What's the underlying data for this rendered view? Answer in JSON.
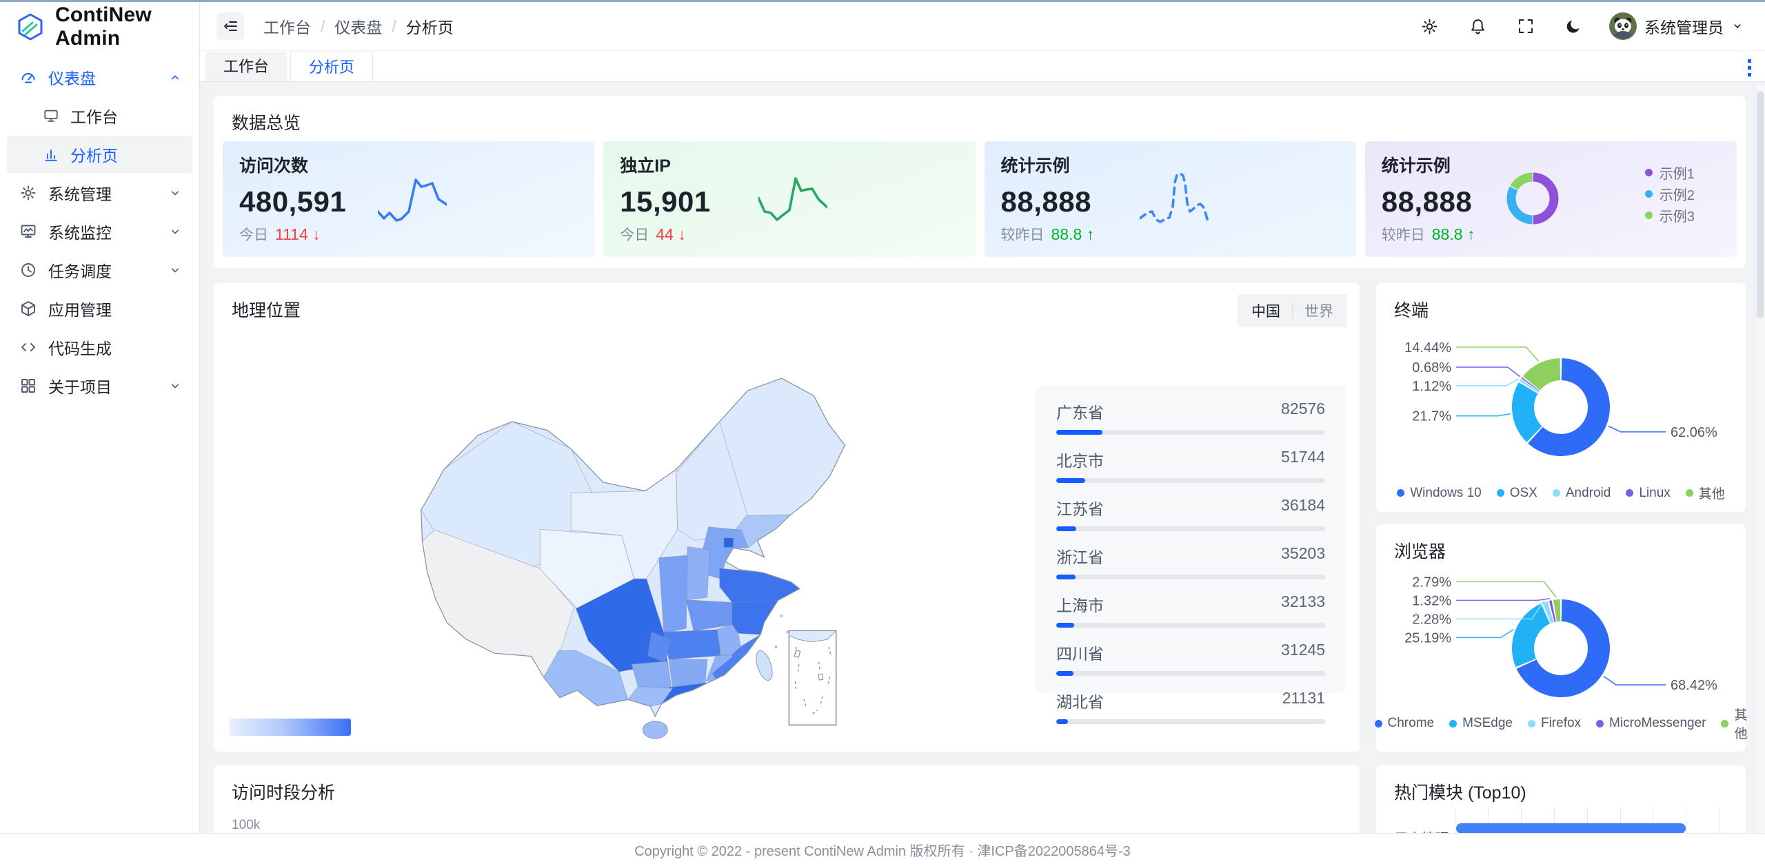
{
  "brand": {
    "title": "ContiNew Admin"
  },
  "breadcrumb": {
    "items": [
      "工作台",
      "仪表盘",
      "分析页"
    ]
  },
  "header": {
    "user_name": "系统管理员"
  },
  "sidebar": {
    "items": [
      {
        "label": "仪表盘"
      },
      {
        "label": "工作台"
      },
      {
        "label": "分析页"
      },
      {
        "label": "系统管理"
      },
      {
        "label": "系统监控"
      },
      {
        "label": "任务调度"
      },
      {
        "label": "应用管理"
      },
      {
        "label": "代码生成"
      },
      {
        "label": "关于项目"
      }
    ]
  },
  "tabs": {
    "items": [
      {
        "label": "工作台"
      },
      {
        "label": "分析页"
      }
    ]
  },
  "overview": {
    "title": "数据总览",
    "cards": [
      {
        "title": "访问次数",
        "value": "480,591",
        "label": "今日",
        "delta": "1114",
        "arrow": "↓",
        "direction": "down"
      },
      {
        "title": "独立IP",
        "value": "15,901",
        "label": "今日",
        "delta": "44",
        "arrow": "↓",
        "direction": "down"
      },
      {
        "title": "统计示例",
        "value": "88,888",
        "label": "较昨日",
        "delta": "88.8",
        "arrow": "↑",
        "direction": "up"
      },
      {
        "title": "统计示例",
        "value": "88,888",
        "label": "较昨日",
        "delta": "88.8",
        "arrow": "↑",
        "direction": "up"
      }
    ]
  },
  "geo": {
    "title": "地理位置",
    "toggle": {
      "options": [
        "中国",
        "世界"
      ],
      "selected": "中国"
    }
  },
  "terminal": {
    "title": "终端"
  },
  "browser": {
    "title": "浏览器"
  },
  "visit_time": {
    "title": "访问时段分析",
    "y_tick": "100k"
  },
  "top_modules": {
    "title": "热门模块 (Top10)"
  },
  "footer": {
    "text": "Copyright © 2022 - present ContiNew Admin 版权所有 · 津ICP备2022005864号-3"
  },
  "colors": {
    "primary": "#165dff",
    "down": "#f53f3f",
    "up": "#00b42a"
  },
  "chart_data": [
    {
      "id": "visits_trend",
      "type": "line",
      "title": "访问次数",
      "color": "#3a7bf8",
      "dashed": false,
      "points": [
        [
          0,
          62
        ],
        [
          9,
          72
        ],
        [
          17,
          64
        ],
        [
          27,
          75
        ],
        [
          34,
          73
        ],
        [
          45,
          62
        ],
        [
          55,
          16
        ],
        [
          63,
          26
        ],
        [
          71,
          24
        ],
        [
          79,
          21
        ],
        [
          88,
          44
        ],
        [
          100,
          52
        ]
      ]
    },
    {
      "id": "ip_trend",
      "type": "line",
      "title": "独立IP",
      "color": "#2aa765",
      "dashed": false,
      "points": [
        [
          0,
          42
        ],
        [
          9,
          62
        ],
        [
          18,
          64
        ],
        [
          27,
          74
        ],
        [
          37,
          66
        ],
        [
          45,
          60
        ],
        [
          54,
          14
        ],
        [
          62,
          32
        ],
        [
          70,
          30
        ],
        [
          78,
          29
        ],
        [
          87,
          44
        ],
        [
          100,
          56
        ]
      ]
    },
    {
      "id": "stat_trend",
      "type": "line",
      "title": "统计示例",
      "color": "#4285f4",
      "dashed": true,
      "points": [
        [
          0,
          72
        ],
        [
          7,
          67
        ],
        [
          13,
          63
        ],
        [
          18,
          62
        ],
        [
          24,
          74
        ],
        [
          30,
          77
        ],
        [
          37,
          73
        ],
        [
          43,
          71
        ],
        [
          48,
          55
        ],
        [
          51,
          20
        ],
        [
          54,
          9
        ],
        [
          59,
          7
        ],
        [
          63,
          10
        ],
        [
          66,
          22
        ],
        [
          69,
          50
        ],
        [
          73,
          62
        ],
        [
          78,
          58
        ],
        [
          83,
          53
        ],
        [
          88,
          51
        ],
        [
          92,
          55
        ],
        [
          96,
          66
        ],
        [
          100,
          80
        ]
      ]
    },
    {
      "id": "stat_pie",
      "type": "pie",
      "title": "统计示例",
      "series": [
        {
          "name": "示例1",
          "value": 50,
          "color": "#8e51da"
        },
        {
          "name": "示例2",
          "value": 33,
          "color": "#37b1f3"
        },
        {
          "name": "示例3",
          "value": 17,
          "color": "#8ad461"
        }
      ]
    },
    {
      "id": "terminal_pie",
      "type": "pie",
      "title": "终端",
      "labels": "percent",
      "legend_position": "bottom",
      "series": [
        {
          "name": "Windows 10",
          "value": 62.06,
          "color": "#2e6bf6"
        },
        {
          "name": "OSX",
          "value": 21.7,
          "color": "#20b1f6"
        },
        {
          "name": "Android",
          "value": 1.12,
          "color": "#8edcfb"
        },
        {
          "name": "Linux",
          "value": 0.68,
          "color": "#7f5ce8"
        },
        {
          "name": "其他",
          "value": 14.44,
          "color": "#8ed05f"
        }
      ]
    },
    {
      "id": "browser_pie",
      "type": "pie",
      "title": "浏览器",
      "labels": "percent",
      "legend_position": "bottom",
      "series": [
        {
          "name": "Chrome",
          "value": 68.42,
          "color": "#2e6bf6"
        },
        {
          "name": "MSEdge",
          "value": 25.19,
          "color": "#20b1f6"
        },
        {
          "name": "Firefox",
          "value": 2.28,
          "color": "#8edcfb"
        },
        {
          "name": "MicroMessenger",
          "value": 1.32,
          "color": "#7f5ce8"
        },
        {
          "name": "其他",
          "value": 2.79,
          "color": "#8ed05f"
        }
      ]
    },
    {
      "id": "geo_ranking",
      "type": "bar",
      "title": "地理位置",
      "categories": [
        "广东省",
        "北京市",
        "江苏省",
        "浙江省",
        "上海市",
        "四川省",
        "湖北省"
      ],
      "values": [
        82576,
        51744,
        36184,
        35203,
        32133,
        31245,
        21131
      ],
      "bar_total": 480591
    },
    {
      "id": "visit_time",
      "type": "line",
      "title": "访问时段分析",
      "visible_ticks": [
        "100k"
      ]
    },
    {
      "id": "top_modules",
      "type": "bar",
      "title": "热门模块 (Top10)",
      "categories": [
        "用户管理"
      ],
      "fill_ratio": 0.84
    }
  ]
}
